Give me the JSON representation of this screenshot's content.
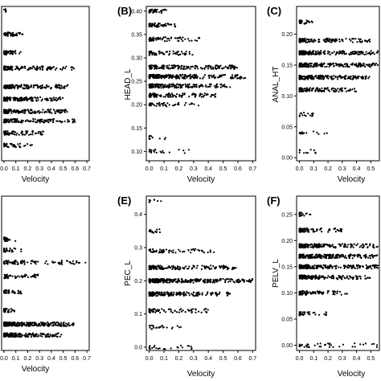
{
  "chart_data": [
    {
      "type": "scatter",
      "panel_label": "",
      "xlabel": "Velocity",
      "ylabel": "",
      "xlim": [
        -0.02,
        0.72
      ],
      "ylim": [
        0,
        1
      ],
      "xticks": [
        "0.0",
        "0.1",
        "0.2",
        "0.3",
        "0.4",
        "0.5",
        "0.6",
        "0.7"
      ],
      "yticks": [],
      "bands": [
        {
          "y": 0.97,
          "xmax": 0.03,
          "n": 6
        },
        {
          "y": 0.82,
          "xmax": 0.16,
          "n": 45
        },
        {
          "y": 0.7,
          "xmax": 0.15,
          "n": 40
        },
        {
          "y": 0.6,
          "xmax": 0.6,
          "n": 110
        },
        {
          "y": 0.48,
          "xmax": 0.55,
          "n": 140
        },
        {
          "y": 0.4,
          "xmax": 0.5,
          "n": 160
        },
        {
          "y": 0.32,
          "xmax": 0.55,
          "n": 160
        },
        {
          "y": 0.26,
          "xmax": 0.6,
          "n": 120
        },
        {
          "y": 0.18,
          "xmax": 0.35,
          "n": 70
        },
        {
          "y": 0.1,
          "xmax": 0.25,
          "n": 40
        }
      ]
    },
    {
      "type": "scatter",
      "panel_label": "(B)",
      "xlabel": "Velocity",
      "ylabel": "HEAD_L",
      "xlim": [
        -0.02,
        0.72
      ],
      "ylim": [
        0.08,
        0.41
      ],
      "xticks": [
        "0.0",
        "0.1",
        "0.2",
        "0.3",
        "0.4",
        "0.5",
        "0.6",
        "0.7"
      ],
      "yticks": [
        "0.10",
        "0.15",
        "0.20",
        "0.25",
        "0.30",
        "0.35",
        "0.40"
      ],
      "bands": [
        {
          "y": 0.4,
          "xmax": 0.12,
          "n": 40
        },
        {
          "y": 0.37,
          "xmax": 0.18,
          "n": 70
        },
        {
          "y": 0.34,
          "xmax": 0.35,
          "n": 70
        },
        {
          "y": 0.31,
          "xmax": 0.3,
          "n": 60
        },
        {
          "y": 0.28,
          "xmax": 0.6,
          "n": 170
        },
        {
          "y": 0.26,
          "xmax": 0.65,
          "n": 220
        },
        {
          "y": 0.24,
          "xmax": 0.55,
          "n": 180
        },
        {
          "y": 0.22,
          "xmax": 0.45,
          "n": 100
        },
        {
          "y": 0.2,
          "xmax": 0.35,
          "n": 40
        },
        {
          "y": 0.13,
          "xmax": 0.12,
          "n": 10
        },
        {
          "y": 0.1,
          "xmax": 0.28,
          "n": 20
        }
      ]
    },
    {
      "type": "scatter",
      "panel_label": "(C)",
      "xlabel": "Velocity",
      "ylabel": "ANAL_HT",
      "xlim": [
        -0.02,
        0.56
      ],
      "ylim": [
        -0.005,
        0.245
      ],
      "xticks": [
        "0.0",
        "0.1",
        "0.2",
        "0.3",
        "0.4",
        "0.5"
      ],
      "yticks": [
        "0.00",
        "0.05",
        "0.10",
        "0.15",
        "0.20"
      ],
      "bands": [
        {
          "y": 0.22,
          "xmax": 0.1,
          "n": 30
        },
        {
          "y": 0.19,
          "xmax": 0.5,
          "n": 130
        },
        {
          "y": 0.17,
          "xmax": 0.55,
          "n": 180
        },
        {
          "y": 0.15,
          "xmax": 0.55,
          "n": 200
        },
        {
          "y": 0.13,
          "xmax": 0.5,
          "n": 170
        },
        {
          "y": 0.11,
          "xmax": 0.4,
          "n": 110
        },
        {
          "y": 0.07,
          "xmax": 0.1,
          "n": 14
        },
        {
          "y": 0.04,
          "xmax": 0.2,
          "n": 14
        },
        {
          "y": 0.01,
          "xmax": 0.12,
          "n": 10
        }
      ]
    },
    {
      "type": "scatter",
      "panel_label": "",
      "xlabel": "Velocity",
      "ylabel": "",
      "xlim": [
        -0.02,
        0.72
      ],
      "ylim": [
        0,
        1
      ],
      "xticks": [
        "0.0",
        "0.1",
        "0.2",
        "0.3",
        "0.4",
        "0.5",
        "0.6",
        "0.7"
      ],
      "yticks": [],
      "bands": [
        {
          "y": 0.72,
          "xmax": 0.1,
          "n": 25
        },
        {
          "y": 0.65,
          "xmax": 0.15,
          "n": 30
        },
        {
          "y": 0.57,
          "xmax": 0.7,
          "n": 90
        },
        {
          "y": 0.48,
          "xmax": 0.3,
          "n": 50
        },
        {
          "y": 0.38,
          "xmax": 0.15,
          "n": 30
        },
        {
          "y": 0.26,
          "xmax": 0.1,
          "n": 25
        },
        {
          "y": 0.17,
          "xmax": 0.6,
          "n": 260
        },
        {
          "y": 0.1,
          "xmax": 0.5,
          "n": 180
        }
      ]
    },
    {
      "type": "scatter",
      "panel_label": "(E)",
      "xlabel": "Velocity",
      "ylabel": "PEC_L",
      "xlim": [
        -0.02,
        0.72
      ],
      "ylim": [
        -0.01,
        0.455
      ],
      "xticks": [
        "0.0",
        "0.1",
        "0.2",
        "0.3",
        "0.4",
        "0.5",
        "0.6",
        "0.7"
      ],
      "yticks": [
        "0.0",
        "0.1",
        "0.2",
        "0.3",
        "0.4"
      ],
      "bands": [
        {
          "y": 0.44,
          "xmax": 0.08,
          "n": 8
        },
        {
          "y": 0.35,
          "xmax": 0.1,
          "n": 15
        },
        {
          "y": 0.29,
          "xmax": 0.45,
          "n": 60
        },
        {
          "y": 0.24,
          "xmax": 0.6,
          "n": 150
        },
        {
          "y": 0.2,
          "xmax": 0.7,
          "n": 260
        },
        {
          "y": 0.16,
          "xmax": 0.55,
          "n": 180
        },
        {
          "y": 0.11,
          "xmax": 0.4,
          "n": 70
        },
        {
          "y": 0.06,
          "xmax": 0.25,
          "n": 25
        },
        {
          "y": 0.0,
          "xmax": 0.3,
          "n": 22
        }
      ]
    },
    {
      "type": "scatter",
      "panel_label": "(F)",
      "xlabel": "Velocity",
      "ylabel": "PELV_L",
      "xlim": [
        -0.02,
        0.56
      ],
      "ylim": [
        -0.01,
        0.285
      ],
      "xticks": [
        "0.0",
        "0.1",
        "0.2",
        "0.3",
        "0.4",
        "0.5"
      ],
      "yticks": [
        "0.00",
        "0.05",
        "0.10",
        "0.15",
        "0.20",
        "0.25"
      ],
      "bands": [
        {
          "y": 0.25,
          "xmax": 0.08,
          "n": 20
        },
        {
          "y": 0.22,
          "xmax": 0.3,
          "n": 80
        },
        {
          "y": 0.19,
          "xmax": 0.55,
          "n": 150
        },
        {
          "y": 0.17,
          "xmax": 0.55,
          "n": 220
        },
        {
          "y": 0.15,
          "xmax": 0.55,
          "n": 220
        },
        {
          "y": 0.13,
          "xmax": 0.5,
          "n": 160
        },
        {
          "y": 0.1,
          "xmax": 0.35,
          "n": 80
        },
        {
          "y": 0.06,
          "xmax": 0.2,
          "n": 30
        },
        {
          "y": 0.0,
          "xmax": 0.55,
          "n": 40
        }
      ]
    }
  ]
}
